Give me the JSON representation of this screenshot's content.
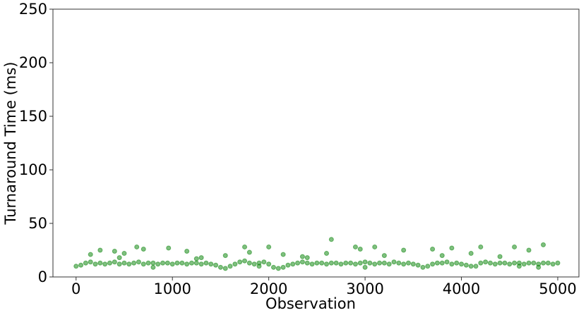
{
  "chart_data": {
    "type": "scatter",
    "xlabel": "Observation",
    "ylabel": "Turnaround Time (ms)",
    "x": [
      0,
      50,
      100,
      150,
      200,
      250,
      300,
      350,
      400,
      450,
      500,
      550,
      600,
      650,
      700,
      750,
      800,
      850,
      900,
      950,
      1000,
      1050,
      1100,
      1150,
      1200,
      1250,
      1300,
      1350,
      1400,
      1450,
      1500,
      1550,
      1600,
      1650,
      1700,
      1750,
      1800,
      1850,
      1900,
      1950,
      2000,
      2050,
      2100,
      2150,
      2200,
      2250,
      2300,
      2350,
      2400,
      2450,
      2500,
      2550,
      2600,
      2650,
      2700,
      2750,
      2800,
      2850,
      2900,
      2950,
      3000,
      3050,
      3100,
      3150,
      3200,
      3250,
      3300,
      3350,
      3400,
      3450,
      3500,
      3550,
      3600,
      3650,
      3700,
      3750,
      3800,
      3850,
      3900,
      3950,
      4000,
      4050,
      4100,
      4150,
      4200,
      4250,
      4300,
      4350,
      4400,
      4450,
      4500,
      4550,
      4600,
      4650,
      4700,
      4750,
      4800,
      4850,
      4900,
      4950,
      5000,
      2650,
      4850,
      630,
      1750,
      2000,
      2900,
      4200,
      4550,
      960,
      3100,
      150,
      250,
      400,
      700,
      1150,
      1550,
      2350,
      2600,
      2950,
      3400,
      3700,
      3900,
      4100,
      4700,
      3800,
      1800,
      2150,
      3200,
      4400,
      450,
      1250,
      1300,
      800,
      1900,
      3000,
      4600,
      4800,
      500,
      2400
    ],
    "series": [
      {
        "color": "#008000",
        "values": [
          10,
          11,
          13,
          14,
          12,
          13,
          12,
          13,
          14,
          12,
          13,
          12,
          13,
          14,
          12,
          13,
          13,
          12,
          13,
          13,
          12,
          13,
          13,
          12,
          13,
          13,
          12,
          13,
          12,
          11,
          9,
          8,
          10,
          12,
          14,
          15,
          13,
          12,
          13,
          14,
          12,
          9,
          8,
          9,
          11,
          12,
          13,
          14,
          13,
          12,
          13,
          13,
          12,
          13,
          13,
          12,
          13,
          13,
          12,
          13,
          14,
          13,
          12,
          13,
          13,
          12,
          14,
          13,
          12,
          13,
          12,
          11,
          9,
          10,
          12,
          13,
          13,
          14,
          12,
          13,
          12,
          11,
          10,
          10,
          13,
          14,
          13,
          12,
          13,
          13,
          12,
          13,
          13,
          12,
          13,
          13,
          12,
          13,
          13,
          12,
          13,
          35,
          30,
          28,
          28,
          28,
          28,
          28,
          28,
          27,
          28,
          21,
          25,
          24,
          26,
          24,
          20,
          19,
          22,
          26,
          25,
          26,
          27,
          22,
          25,
          20,
          23,
          21,
          20,
          19,
          18,
          17,
          18,
          9,
          10,
          9,
          10,
          9,
          22,
          18
        ]
      }
    ],
    "xlim": [
      -240,
      5220
    ],
    "ylim": [
      0,
      250
    ],
    "xticks": [
      0,
      1000,
      2000,
      3000,
      4000,
      5000
    ],
    "yticks": [
      0,
      50,
      100,
      150,
      200,
      250
    ]
  }
}
